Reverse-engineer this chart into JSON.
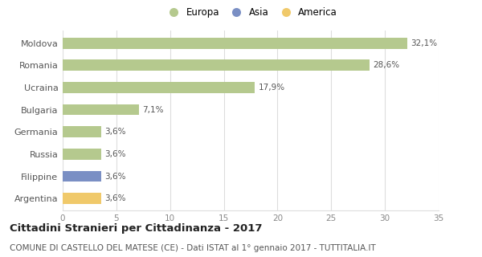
{
  "categories": [
    "Moldova",
    "Romania",
    "Ucraina",
    "Bulgaria",
    "Germania",
    "Russia",
    "Filippine",
    "Argentina"
  ],
  "values": [
    32.1,
    28.6,
    17.9,
    7.1,
    3.6,
    3.6,
    3.6,
    3.6
  ],
  "labels": [
    "32,1%",
    "28,6%",
    "17,9%",
    "7,1%",
    "3,6%",
    "3,6%",
    "3,6%",
    "3,6%"
  ],
  "bar_colors": [
    "#b5c98e",
    "#b5c98e",
    "#b5c98e",
    "#b5c98e",
    "#b5c98e",
    "#b5c98e",
    "#7a8fc4",
    "#f0c96a"
  ],
  "legend": [
    {
      "label": "Europa",
      "color": "#b5c98e"
    },
    {
      "label": "Asia",
      "color": "#7a8fc4"
    },
    {
      "label": "America",
      "color": "#f0c96a"
    }
  ],
  "xlim": [
    0,
    35
  ],
  "xticks": [
    0,
    5,
    10,
    15,
    20,
    25,
    30,
    35
  ],
  "title": "Cittadini Stranieri per Cittadinanza - 2017",
  "subtitle": "COMUNE DI CASTELLO DEL MATESE (CE) - Dati ISTAT al 1° gennaio 2017 - TUTTITALIA.IT",
  "title_fontsize": 9.5,
  "subtitle_fontsize": 7.5,
  "background_color": "#ffffff",
  "grid_color": "#dddddd",
  "bar_height": 0.5
}
